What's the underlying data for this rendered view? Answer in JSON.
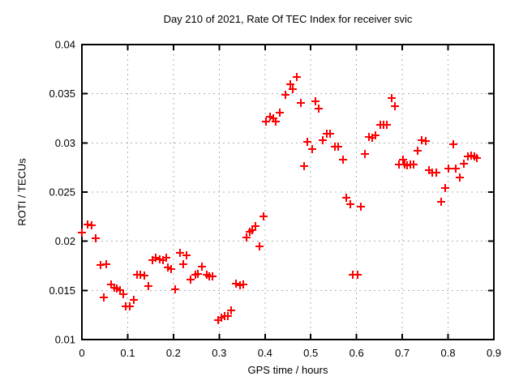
{
  "chart_data": {
    "type": "scatter",
    "title": "Day 210 of 2021, Rate Of TEC Index for receiver svic",
    "xlabel": "GPS time / hours",
    "ylabel": "ROTI / TECUs",
    "xlim": [
      0,
      0.9
    ],
    "ylim": [
      0.01,
      0.04
    ],
    "xticks": [
      "0",
      "0.1",
      "0.2",
      "0.3",
      "0.4",
      "0.5",
      "0.6",
      "0.7",
      "0.8",
      "0.9"
    ],
    "yticks": [
      "0.01",
      "0.015",
      "0.02",
      "0.025",
      "0.03",
      "0.035",
      "0.04"
    ],
    "grid": true,
    "legend": "none",
    "marker": {
      "shape": "plus",
      "color": "#ff0000"
    },
    "grid_color": "#b0b0b0",
    "axis_color": "#000000",
    "points": [
      [
        0.0,
        0.0209
      ],
      [
        0.013,
        0.0217
      ],
      [
        0.022,
        0.0216
      ],
      [
        0.031,
        0.0203
      ],
      [
        0.04,
        0.0176
      ],
      [
        0.047,
        0.0143
      ],
      [
        0.054,
        0.0177
      ],
      [
        0.063,
        0.0156
      ],
      [
        0.071,
        0.0153
      ],
      [
        0.077,
        0.0152
      ],
      [
        0.084,
        0.015
      ],
      [
        0.09,
        0.0146
      ],
      [
        0.096,
        0.0134
      ],
      [
        0.105,
        0.0134
      ],
      [
        0.113,
        0.014
      ],
      [
        0.12,
        0.0166
      ],
      [
        0.128,
        0.0166
      ],
      [
        0.137,
        0.0165
      ],
      [
        0.146,
        0.0154
      ],
      [
        0.154,
        0.0181
      ],
      [
        0.162,
        0.0183
      ],
      [
        0.17,
        0.0182
      ],
      [
        0.177,
        0.0181
      ],
      [
        0.184,
        0.0183
      ],
      [
        0.187,
        0.0173
      ],
      [
        0.195,
        0.0172
      ],
      [
        0.204,
        0.0151
      ],
      [
        0.214,
        0.0188
      ],
      [
        0.221,
        0.0177
      ],
      [
        0.229,
        0.0186
      ],
      [
        0.237,
        0.0161
      ],
      [
        0.248,
        0.0166
      ],
      [
        0.254,
        0.0167
      ],
      [
        0.263,
        0.0174
      ],
      [
        0.272,
        0.0166
      ],
      [
        0.279,
        0.0164
      ],
      [
        0.285,
        0.0164
      ],
      [
        0.298,
        0.012
      ],
      [
        0.305,
        0.0122
      ],
      [
        0.312,
        0.0124
      ],
      [
        0.319,
        0.0124
      ],
      [
        0.326,
        0.013
      ],
      [
        0.337,
        0.0157
      ],
      [
        0.345,
        0.0155
      ],
      [
        0.353,
        0.0156
      ],
      [
        0.36,
        0.0204
      ],
      [
        0.366,
        0.021
      ],
      [
        0.372,
        0.0211
      ],
      [
        0.38,
        0.0215
      ],
      [
        0.388,
        0.0195
      ],
      [
        0.397,
        0.0225
      ],
      [
        0.402,
        0.0322
      ],
      [
        0.411,
        0.0327
      ],
      [
        0.418,
        0.0325
      ],
      [
        0.424,
        0.0322
      ],
      [
        0.433,
        0.0331
      ],
      [
        0.445,
        0.0349
      ],
      [
        0.455,
        0.036
      ],
      [
        0.461,
        0.0355
      ],
      [
        0.469,
        0.0367
      ],
      [
        0.478,
        0.0341
      ],
      [
        0.486,
        0.0276
      ],
      [
        0.493,
        0.0301
      ],
      [
        0.503,
        0.0294
      ],
      [
        0.51,
        0.0342
      ],
      [
        0.518,
        0.0335
      ],
      [
        0.527,
        0.0303
      ],
      [
        0.535,
        0.0309
      ],
      [
        0.542,
        0.0309
      ],
      [
        0.552,
        0.0296
      ],
      [
        0.559,
        0.0296
      ],
      [
        0.571,
        0.0283
      ],
      [
        0.578,
        0.0244
      ],
      [
        0.586,
        0.0238
      ],
      [
        0.592,
        0.0166
      ],
      [
        0.602,
        0.0166
      ],
      [
        0.61,
        0.0235
      ],
      [
        0.618,
        0.0289
      ],
      [
        0.628,
        0.0306
      ],
      [
        0.635,
        0.0305
      ],
      [
        0.642,
        0.0308
      ],
      [
        0.652,
        0.0318
      ],
      [
        0.659,
        0.0318
      ],
      [
        0.666,
        0.0318
      ],
      [
        0.677,
        0.0346
      ],
      [
        0.684,
        0.0337
      ],
      [
        0.693,
        0.0278
      ],
      [
        0.702,
        0.0283
      ],
      [
        0.706,
        0.0278
      ],
      [
        0.711,
        0.0277
      ],
      [
        0.717,
        0.0278
      ],
      [
        0.724,
        0.0278
      ],
      [
        0.733,
        0.0292
      ],
      [
        0.742,
        0.0303
      ],
      [
        0.751,
        0.0302
      ],
      [
        0.759,
        0.0272
      ],
      [
        0.766,
        0.027
      ],
      [
        0.775,
        0.027
      ],
      [
        0.785,
        0.024
      ],
      [
        0.793,
        0.0254
      ],
      [
        0.801,
        0.0274
      ],
      [
        0.812,
        0.0299
      ],
      [
        0.816,
        0.0274
      ],
      [
        0.825,
        0.0265
      ],
      [
        0.835,
        0.0279
      ],
      [
        0.843,
        0.0286
      ],
      [
        0.85,
        0.0287
      ],
      [
        0.857,
        0.0286
      ],
      [
        0.863,
        0.0285
      ]
    ]
  }
}
